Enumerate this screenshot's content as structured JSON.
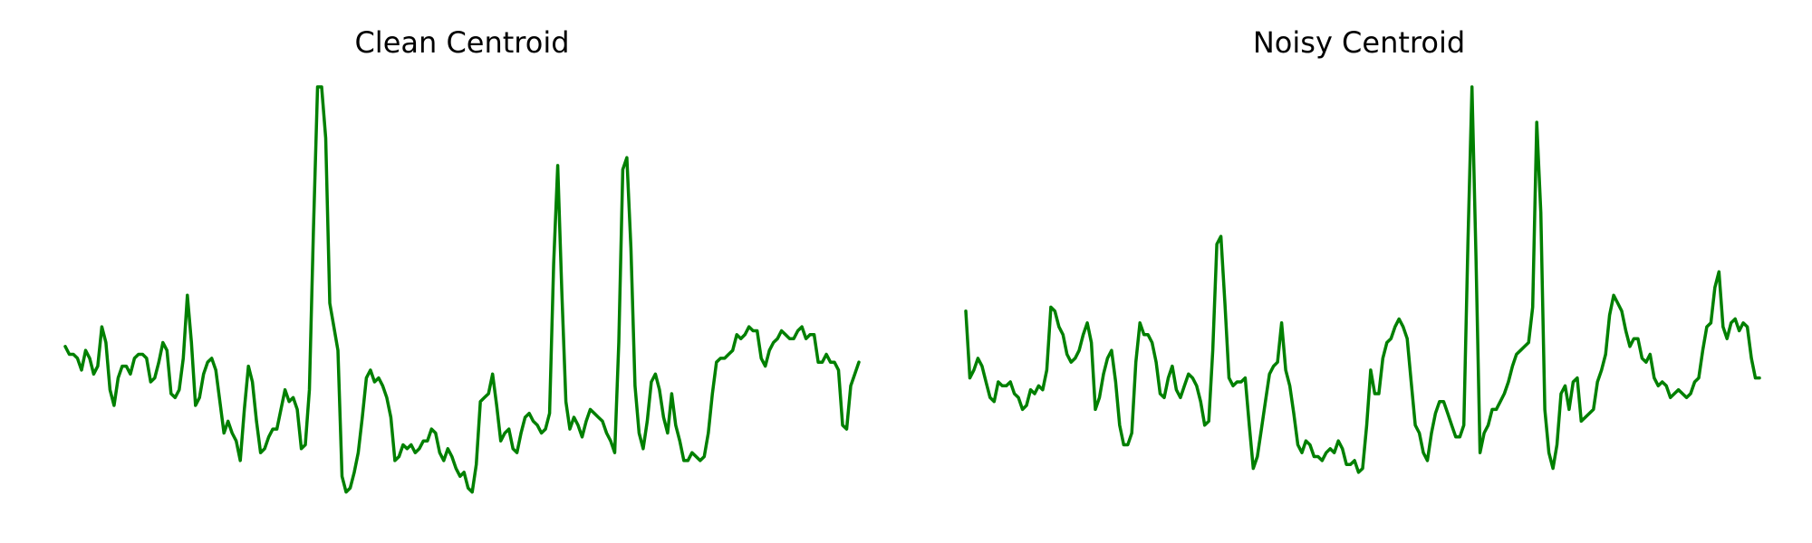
{
  "chart_data": [
    {
      "type": "line",
      "title": "Clean Centroid",
      "xlabel": "",
      "ylabel": "",
      "axes_visible": false,
      "grid": false,
      "ylim": [
        0,
        1
      ],
      "color": "#008000",
      "values": [
        0.34,
        0.32,
        0.32,
        0.31,
        0.28,
        0.33,
        0.31,
        0.27,
        0.29,
        0.39,
        0.35,
        0.23,
        0.19,
        0.26,
        0.29,
        0.29,
        0.27,
        0.31,
        0.32,
        0.32,
        0.31,
        0.25,
        0.26,
        0.3,
        0.35,
        0.33,
        0.22,
        0.21,
        0.23,
        0.31,
        0.47,
        0.35,
        0.19,
        0.21,
        0.27,
        0.3,
        0.31,
        0.28,
        0.2,
        0.12,
        0.15,
        0.12,
        0.1,
        0.05,
        0.18,
        0.29,
        0.25,
        0.15,
        0.07,
        0.08,
        0.11,
        0.13,
        0.13,
        0.18,
        0.23,
        0.2,
        0.21,
        0.18,
        0.08,
        0.09,
        0.23,
        0.64,
        1.0,
        1.0,
        0.87,
        0.45,
        0.39,
        0.33,
        0.01,
        -0.03,
        -0.02,
        0.02,
        0.07,
        0.16,
        0.26,
        0.28,
        0.25,
        0.26,
        0.24,
        0.21,
        0.16,
        0.05,
        0.06,
        0.09,
        0.08,
        0.09,
        0.07,
        0.08,
        0.1,
        0.1,
        0.13,
        0.12,
        0.07,
        0.05,
        0.08,
        0.06,
        0.03,
        0.01,
        0.02,
        -0.02,
        -0.03,
        0.04,
        0.2,
        0.21,
        0.22,
        0.27,
        0.19,
        0.1,
        0.12,
        0.13,
        0.08,
        0.07,
        0.12,
        0.16,
        0.17,
        0.15,
        0.14,
        0.12,
        0.13,
        0.17,
        0.55,
        0.8,
        0.48,
        0.2,
        0.13,
        0.16,
        0.14,
        0.11,
        0.15,
        0.18,
        0.17,
        0.16,
        0.15,
        0.12,
        0.1,
        0.07,
        0.35,
        0.79,
        0.82,
        0.59,
        0.24,
        0.12,
        0.08,
        0.15,
        0.25,
        0.27,
        0.23,
        0.16,
        0.12,
        0.22,
        0.14,
        0.1,
        0.05,
        0.05,
        0.07,
        0.06,
        0.05,
        0.06,
        0.12,
        0.22,
        0.3,
        0.31,
        0.31,
        0.32,
        0.33,
        0.37,
        0.36,
        0.37,
        0.39,
        0.38,
        0.38,
        0.31,
        0.29,
        0.33,
        0.35,
        0.36,
        0.38,
        0.37,
        0.36,
        0.36,
        0.38,
        0.39,
        0.36,
        0.37,
        0.37,
        0.3,
        0.3,
        0.32,
        0.3,
        0.3,
        0.28,
        0.14,
        0.13,
        0.24,
        0.27,
        0.3
      ]
    },
    {
      "type": "line",
      "title": "Noisy Centroid",
      "xlabel": "",
      "ylabel": "",
      "axes_visible": false,
      "grid": false,
      "ylim": [
        0,
        1
      ],
      "color": "#008000",
      "values": [
        0.43,
        0.26,
        0.28,
        0.31,
        0.29,
        0.25,
        0.21,
        0.2,
        0.25,
        0.24,
        0.24,
        0.25,
        0.22,
        0.21,
        0.18,
        0.19,
        0.23,
        0.22,
        0.24,
        0.23,
        0.28,
        0.44,
        0.43,
        0.39,
        0.37,
        0.32,
        0.3,
        0.31,
        0.33,
        0.37,
        0.4,
        0.35,
        0.18,
        0.21,
        0.27,
        0.31,
        0.33,
        0.25,
        0.14,
        0.09,
        0.09,
        0.12,
        0.3,
        0.4,
        0.37,
        0.37,
        0.35,
        0.3,
        0.22,
        0.21,
        0.26,
        0.29,
        0.23,
        0.21,
        0.24,
        0.27,
        0.26,
        0.24,
        0.2,
        0.14,
        0.15,
        0.33,
        0.6,
        0.62,
        0.45,
        0.26,
        0.24,
        0.25,
        0.25,
        0.26,
        0.14,
        0.03,
        0.06,
        0.13,
        0.2,
        0.27,
        0.29,
        0.3,
        0.4,
        0.28,
        0.24,
        0.17,
        0.09,
        0.07,
        0.1,
        0.09,
        0.06,
        0.06,
        0.05,
        0.07,
        0.08,
        0.07,
        0.1,
        0.08,
        0.04,
        0.04,
        0.05,
        0.02,
        0.03,
        0.14,
        0.28,
        0.22,
        0.22,
        0.31,
        0.35,
        0.36,
        0.39,
        0.41,
        0.39,
        0.36,
        0.25,
        0.14,
        0.12,
        0.07,
        0.05,
        0.12,
        0.17,
        0.2,
        0.2,
        0.17,
        0.14,
        0.11,
        0.11,
        0.14,
        0.6,
        1.0,
        0.57,
        0.07,
        0.12,
        0.14,
        0.18,
        0.18,
        0.2,
        0.22,
        0.25,
        0.29,
        0.32,
        0.33,
        0.34,
        0.35,
        0.44,
        0.91,
        0.68,
        0.18,
        0.07,
        0.03,
        0.09,
        0.22,
        0.24,
        0.18,
        0.25,
        0.26,
        0.15,
        0.16,
        0.17,
        0.18,
        0.25,
        0.28,
        0.32,
        0.42,
        0.47,
        0.45,
        0.43,
        0.38,
        0.34,
        0.36,
        0.36,
        0.31,
        0.3,
        0.32,
        0.26,
        0.24,
        0.25,
        0.24,
        0.21,
        0.22,
        0.23,
        0.22,
        0.21,
        0.22,
        0.25,
        0.26,
        0.33,
        0.39,
        0.4,
        0.49,
        0.53,
        0.39,
        0.36,
        0.4,
        0.41,
        0.38,
        0.4,
        0.39,
        0.31,
        0.26,
        0.26
      ]
    }
  ]
}
